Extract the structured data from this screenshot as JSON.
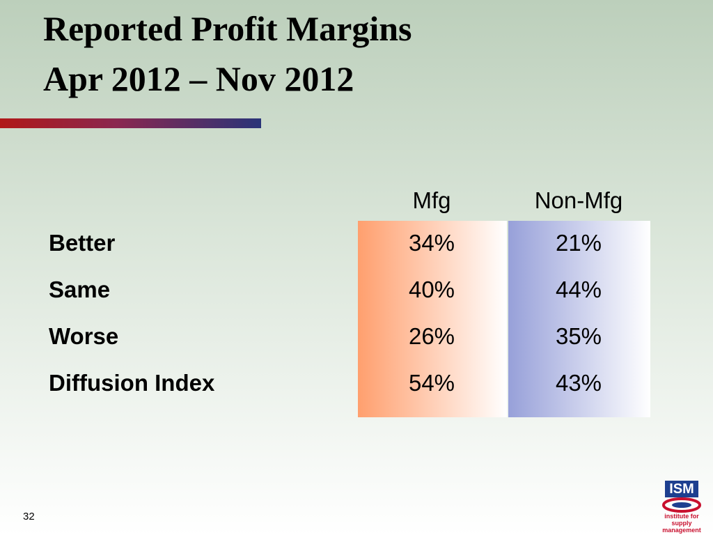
{
  "header": {
    "title": [
      "Reported Profit Margins",
      "Apr 2012 – Nov 2012"
    ]
  },
  "table": {
    "columns": [
      "",
      "Mfg",
      "Non-Mfg"
    ],
    "rows": [
      [
        "Better",
        "34%",
        "21%"
      ],
      [
        "Same",
        "40%",
        "44%"
      ],
      [
        "Worse",
        "26%",
        "35%"
      ],
      [
        "Diffusion Index",
        "54%",
        "43%"
      ]
    ]
  },
  "footer": {
    "page": "32",
    "logo": {
      "mark": "ISM",
      "name": [
        "institute for",
        "supply management"
      ]
    }
  }
}
